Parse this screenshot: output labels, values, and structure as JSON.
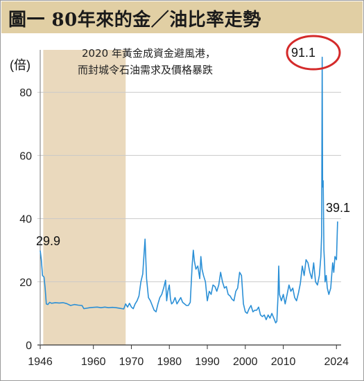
{
  "chart_data": {
    "type": "line",
    "title": "圖一 80年來的金／油比率走勢",
    "ylabel": "(倍)",
    "xlabel": "",
    "ylim": [
      0,
      100
    ],
    "xlim": [
      1946,
      2024.5
    ],
    "yticks": [
      0,
      20,
      40,
      60,
      80
    ],
    "xticks": [
      1946,
      1960,
      1970,
      1980,
      1990,
      2000,
      2010,
      2024
    ],
    "grid": "horizontal",
    "line_color": "#2a8fd6",
    "shade": {
      "from": 1946.8,
      "to": 1968.5,
      "color": "#ead9bd"
    },
    "annotation": {
      "line1": "2020 年黃金成資金避風港，",
      "line2": "而封城令石油需求及價格暴跌"
    },
    "peak_label": "91.1",
    "peak_circle_color": "#d42a2a",
    "start_label": "29.9",
    "end_label": "39.1",
    "series": [
      {
        "x": [
          1946.0,
          1946.3,
          1946.6,
          1947.0,
          1947.3,
          1947.6,
          1948.0,
          1948.5,
          1949.0,
          1950.0,
          1951.0,
          1952.0,
          1953.0,
          1954.0,
          1955.0,
          1956.0,
          1957.0,
          1957.5,
          1958.0,
          1959.0,
          1960.0,
          1961.0,
          1962.0,
          1963.0,
          1964.0,
          1965.0,
          1966.0,
          1967.0,
          1968.0,
          1968.5,
          1969.0,
          1969.5,
          1970.0,
          1970.5,
          1971.0,
          1971.5,
          1972.0,
          1972.5,
          1973.0,
          1973.3,
          1973.6,
          1974.0,
          1974.5,
          1975.0,
          1975.5,
          1976.0,
          1976.5,
          1977.0,
          1977.5,
          1978.0,
          1978.5,
          1979.0,
          1979.3,
          1979.6,
          1980.0,
          1980.3,
          1980.6,
          1981.0,
          1981.5,
          1982.0,
          1982.5,
          1983.0,
          1983.5,
          1984.0,
          1984.5,
          1985.0,
          1985.5,
          1986.0,
          1986.3,
          1986.6,
          1987.0,
          1987.5,
          1988.0,
          1988.3,
          1988.6,
          1989.0,
          1989.5,
          1990.0,
          1990.5,
          1991.0,
          1991.5,
          1992.0,
          1992.5,
          1993.0,
          1993.5,
          1994.0,
          1994.5,
          1995.0,
          1995.5,
          1996.0,
          1996.5,
          1997.0,
          1997.5,
          1998.0,
          1998.5,
          1999.0,
          1999.5,
          2000.0,
          2000.5,
          2001.0,
          2001.5,
          2002.0,
          2002.5,
          2003.0,
          2003.5,
          2004.0,
          2004.5,
          2005.0,
          2005.5,
          2006.0,
          2006.5,
          2007.0,
          2007.5,
          2008.0,
          2008.3,
          2008.6,
          2008.8,
          2009.0,
          2009.5,
          2010.0,
          2010.5,
          2011.0,
          2011.5,
          2012.0,
          2012.5,
          2013.0,
          2013.5,
          2014.0,
          2014.5,
          2015.0,
          2015.5,
          2016.0,
          2016.5,
          2017.0,
          2017.5,
          2018.0,
          2018.5,
          2019.0,
          2019.5,
          2019.9,
          2020.1,
          2020.25,
          2020.35,
          2020.5,
          2020.7,
          2020.9,
          2021.0,
          2021.3,
          2021.6,
          2022.0,
          2022.5,
          2023.0,
          2023.3,
          2023.6,
          2024.0,
          2024.3
        ],
        "values": [
          29.9,
          27.0,
          22.0,
          21.5,
          18.0,
          13.0,
          12.8,
          13.5,
          13.2,
          13.4,
          13.3,
          13.4,
          13.1,
          12.5,
          12.8,
          12.6,
          12.5,
          11.5,
          11.6,
          11.8,
          11.9,
          12.0,
          11.8,
          12.0,
          11.8,
          11.9,
          11.8,
          11.6,
          11.4,
          13.0,
          12.0,
          13.2,
          12.0,
          11.5,
          13.0,
          14.0,
          15.5,
          20.0,
          22.5,
          28.0,
          33.5,
          21.0,
          15.0,
          14.0,
          12.5,
          11.0,
          10.5,
          13.0,
          15.0,
          16.0,
          18.0,
          20.5,
          14.0,
          17.0,
          19.0,
          14.5,
          13.0,
          13.5,
          15.0,
          13.0,
          14.0,
          15.0,
          13.5,
          13.0,
          12.5,
          12.5,
          13.5,
          25.0,
          30.0,
          26.5,
          24.0,
          25.0,
          21.0,
          28.0,
          24.0,
          22.0,
          20.0,
          14.0,
          17.0,
          16.0,
          19.0,
          18.5,
          17.0,
          19.0,
          23.0,
          20.0,
          18.0,
          18.5,
          16.0,
          15.5,
          14.5,
          14.0,
          17.0,
          18.0,
          23.0,
          22.0,
          13.0,
          10.5,
          10.0,
          11.5,
          12.5,
          10.5,
          11.0,
          11.0,
          12.0,
          9.5,
          9.0,
          9.5,
          8.0,
          9.5,
          8.5,
          10.0,
          8.5,
          7.0,
          7.5,
          15.0,
          25.0,
          16.0,
          14.0,
          16.0,
          13.0,
          16.0,
          19.0,
          17.0,
          18.0,
          15.0,
          14.0,
          16.5,
          19.5,
          25.0,
          22.0,
          27.0,
          26.0,
          23.0,
          21.0,
          26.0,
          20.0,
          19.0,
          22.0,
          28.0,
          35.0,
          91.1,
          50.0,
          52.0,
          30.0,
          25.0,
          20.0,
          22.0,
          18.0,
          16.0,
          18.0,
          26.0,
          23.0,
          28.0,
          27.0,
          39.1
        ]
      }
    ]
  }
}
